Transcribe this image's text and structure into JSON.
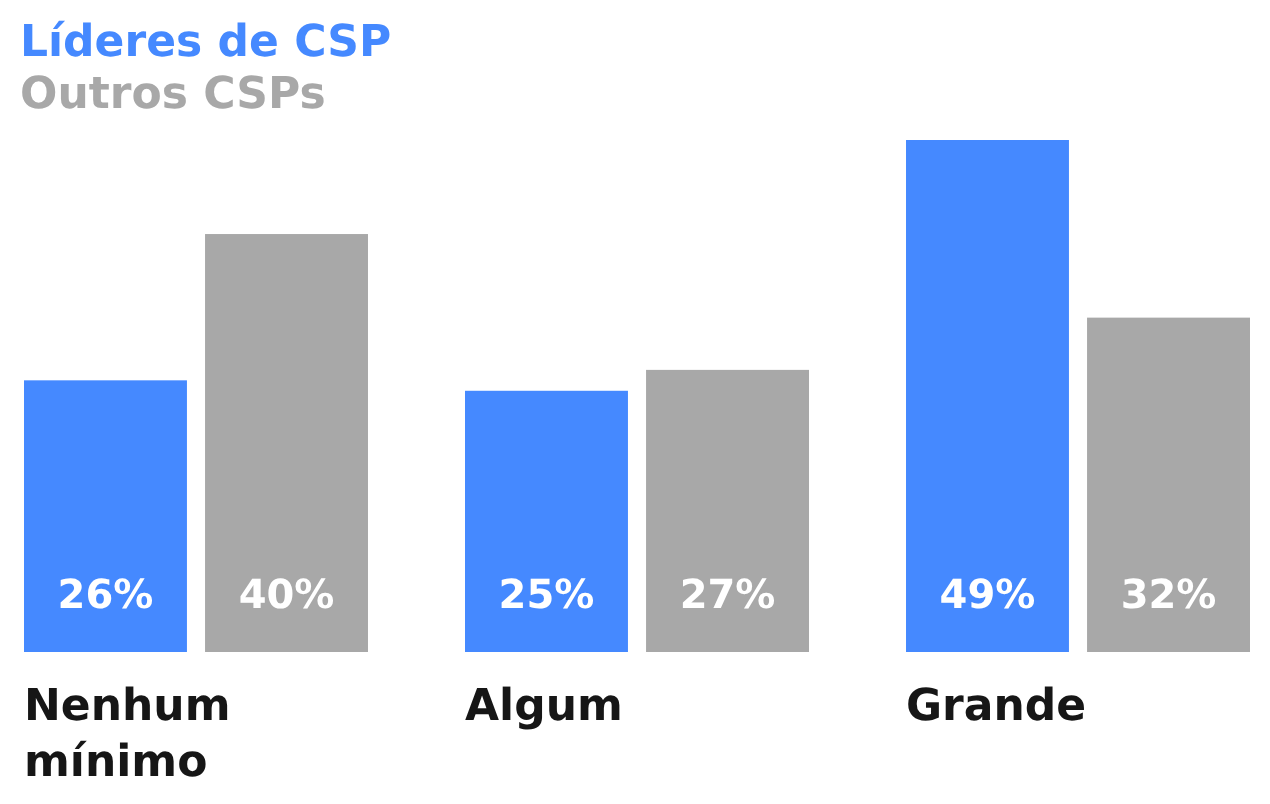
{
  "chart_data": {
    "type": "bar",
    "categories": [
      "Nenhum mínimo",
      "Algum",
      "Grande"
    ],
    "series": [
      {
        "name": "Líderes de CSP",
        "color": "#4589ff",
        "values": [
          26,
          25,
          49
        ],
        "value_labels": [
          "26%",
          "25%",
          "49%"
        ]
      },
      {
        "name": "Outros CSPs",
        "color": "#a8a8a8",
        "values": [
          40,
          27,
          32
        ],
        "value_labels": [
          "40%",
          "27%",
          "32%"
        ]
      }
    ],
    "legend": "top left",
    "grid": false
  }
}
